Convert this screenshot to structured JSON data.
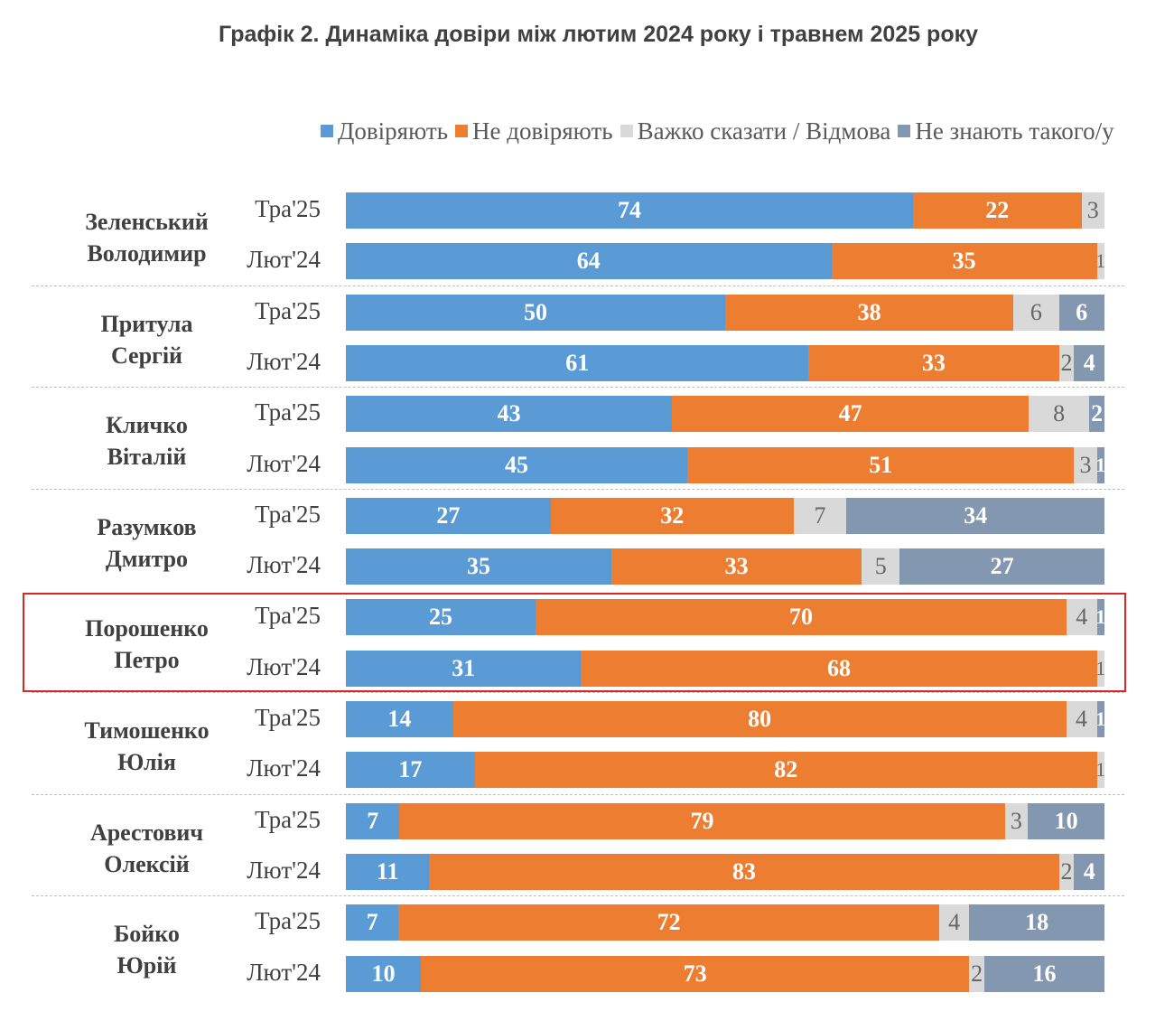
{
  "chart_data": {
    "type": "bar",
    "orientation": "horizontal",
    "stacked": true,
    "title": "Графік 2. Динаміка довіри між лютим 2024 року і травнем 2025 року",
    "legend_position": "top",
    "series": [
      {
        "name": "Довіряють",
        "color": "#5b9bd5"
      },
      {
        "name": "Не довіряють",
        "color": "#ed7d31"
      },
      {
        "name": "Важко сказати / Відмова",
        "color": "#d9d9d9"
      },
      {
        "name": "Не знають такого/у",
        "color": "#8497b0"
      }
    ],
    "highlighted_group": "Порошенко Петро",
    "groups": [
      {
        "name": [
          "Зеленський",
          "Володимир"
        ],
        "rows": [
          {
            "period": "Тра'25",
            "values": [
              74,
              22,
              3,
              0
            ]
          },
          {
            "period": "Лют'24",
            "values": [
              64,
              35,
              1,
              0
            ]
          }
        ]
      },
      {
        "name": [
          "Притула",
          "Сергій"
        ],
        "rows": [
          {
            "period": "Тра'25",
            "values": [
              50,
              38,
              6,
              6
            ]
          },
          {
            "period": "Лют'24",
            "values": [
              61,
              33,
              2,
              4
            ]
          }
        ]
      },
      {
        "name": [
          "Кличко",
          "Віталій"
        ],
        "rows": [
          {
            "period": "Тра'25",
            "values": [
              43,
              47,
              8,
              2
            ]
          },
          {
            "period": "Лют'24",
            "values": [
              45,
              51,
              3,
              1
            ]
          }
        ]
      },
      {
        "name": [
          "Разумков",
          "Дмитро"
        ],
        "rows": [
          {
            "period": "Тра'25",
            "values": [
              27,
              32,
              7,
              34
            ]
          },
          {
            "period": "Лют'24",
            "values": [
              35,
              33,
              5,
              27
            ]
          }
        ]
      },
      {
        "name": [
          "Порошенко",
          "Петро"
        ],
        "rows": [
          {
            "period": "Тра'25",
            "values": [
              25,
              70,
              4,
              1
            ]
          },
          {
            "period": "Лют'24",
            "values": [
              31,
              68,
              1,
              0
            ]
          }
        ]
      },
      {
        "name": [
          "Тимошенко",
          "Юлія"
        ],
        "rows": [
          {
            "period": "Тра'25",
            "values": [
              14,
              80,
              4,
              1
            ]
          },
          {
            "period": "Лют'24",
            "values": [
              17,
              82,
              1,
              0
            ]
          }
        ]
      },
      {
        "name": [
          "Арестович",
          "Олексій"
        ],
        "rows": [
          {
            "period": "Тра'25",
            "values": [
              7,
              79,
              3,
              10
            ]
          },
          {
            "period": "Лют'24",
            "values": [
              11,
              83,
              2,
              4
            ]
          }
        ]
      },
      {
        "name": [
          "Бойко",
          "Юрій"
        ],
        "rows": [
          {
            "period": "Тра'25",
            "values": [
              7,
              72,
              4,
              18
            ]
          },
          {
            "period": "Лют'24",
            "values": [
              10,
              73,
              2,
              16
            ]
          }
        ]
      }
    ]
  }
}
